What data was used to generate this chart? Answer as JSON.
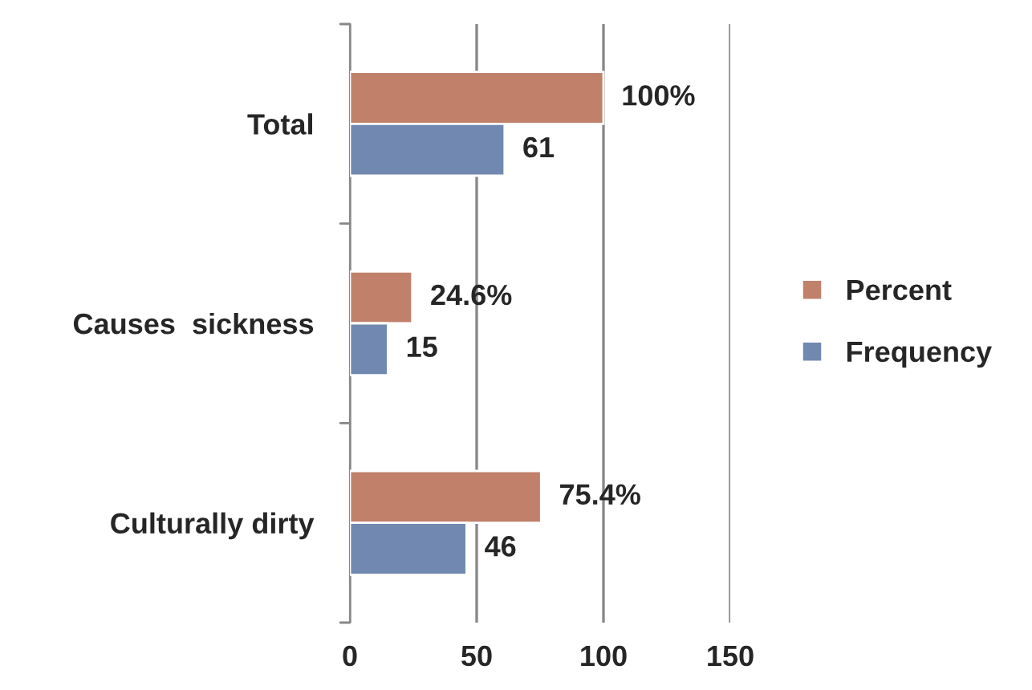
{
  "chart_data": {
    "type": "bar",
    "orientation": "horizontal",
    "categories": [
      "Total",
      "Causes  sickness",
      "Culturally dirty"
    ],
    "series": [
      {
        "name": "Percent",
        "color": "#c0806a",
        "values": [
          100,
          24.6,
          75.4
        ],
        "value_labels": [
          "100%",
          "24.6%",
          "75.4%"
        ]
      },
      {
        "name": "Frequency",
        "color": "#7189b0",
        "values": [
          61,
          15,
          46
        ],
        "value_labels": [
          "61",
          "15",
          "46"
        ]
      }
    ],
    "xlim": [
      0,
      150
    ],
    "xticks": [
      0,
      50,
      100,
      150
    ],
    "grid": "x",
    "legend": "right"
  }
}
